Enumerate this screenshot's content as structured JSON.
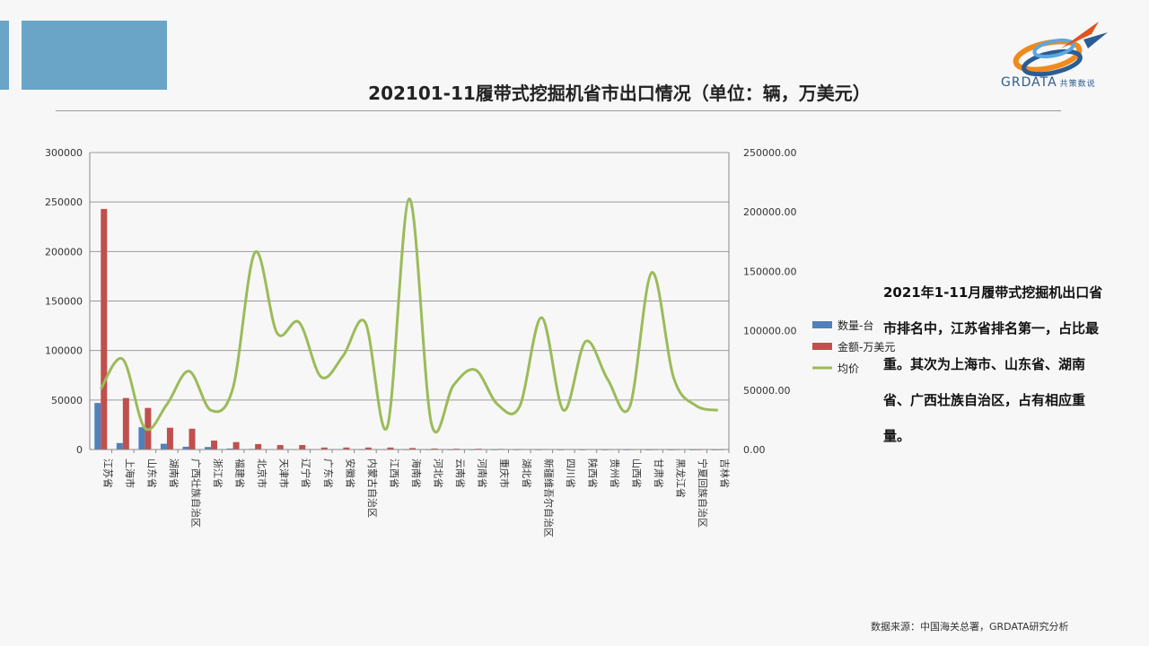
{
  "slide": {
    "title": "202101-11履带式挖掘机省市出口情况（单位：辆，万美元）",
    "summary": "2021年1-11月履带式挖掘机出口省市排名中，江苏省排名第一，占比最重。其次为上海市、山东省、湖南省、广西壮族自治区，占有相应重量。",
    "source": "数据来源：中国海关总署，GRDATA研究分析",
    "logo_text": "GRDATA",
    "logo_subtext": "共策数说"
  },
  "colors": {
    "accent": "#6aa5c8",
    "quantity": "#4f81bd",
    "amount": "#c0504d",
    "avg_price": "#9bbb59"
  },
  "chart_data": {
    "type": "bar",
    "categories": [
      "江苏省",
      "上海市",
      "山东省",
      "湖南省",
      "广西壮族自治区",
      "浙江省",
      "福建省",
      "北京市",
      "天津市",
      "辽宁省",
      "广东省",
      "安徽省",
      "内蒙古自治区",
      "江西省",
      "海南省",
      "河北省",
      "云南省",
      "河南省",
      "重庆市",
      "湖北省",
      "新疆维吾尔自治区",
      "四川省",
      "陕西省",
      "贵州省",
      "山西省",
      "甘肃省",
      "黑龙江省",
      "宁夏回族自治区",
      "吉林省"
    ],
    "series": [
      {
        "name": "数量-台",
        "axis": "left",
        "type": "bar",
        "values": [
          47000,
          6500,
          22500,
          5800,
          2800,
          2500,
          1000,
          600,
          400,
          300,
          350,
          250,
          150,
          200,
          120,
          150,
          100,
          100,
          80,
          80,
          60,
          50,
          40,
          30,
          30,
          20,
          20,
          10,
          10
        ]
      },
      {
        "name": "金额-万美元",
        "axis": "left",
        "type": "bar",
        "values": [
          243000,
          52000,
          42000,
          22000,
          21000,
          9000,
          7500,
          5500,
          4500,
          4500,
          2000,
          2000,
          2000,
          2000,
          1500,
          1000,
          800,
          800,
          600,
          500,
          500,
          400,
          300,
          200,
          200,
          150,
          150,
          100,
          100
        ]
      },
      {
        "name": "均价",
        "axis": "right",
        "type": "line",
        "values": [
          51000,
          76000,
          18000,
          38000,
          66000,
          33000,
          52000,
          166000,
          98000,
          107000,
          61000,
          79000,
          107000,
          19000,
          211000,
          22000,
          54000,
          67000,
          38000,
          36000,
          111000,
          33000,
          91000,
          59000,
          36000,
          149000,
          60000,
          37000,
          33000
        ]
      }
    ],
    "y_left": {
      "min": 0,
      "max": 300000,
      "ticks": [
        "0",
        "50000",
        "100000",
        "150000",
        "200000",
        "250000",
        "300000"
      ]
    },
    "y_right": {
      "min": 0,
      "max": 250000,
      "ticks": [
        "0.00",
        "50000.00",
        "100000.00",
        "150000.00",
        "200000.00",
        "250000.00"
      ]
    },
    "grid": true,
    "legend_position": "right"
  }
}
